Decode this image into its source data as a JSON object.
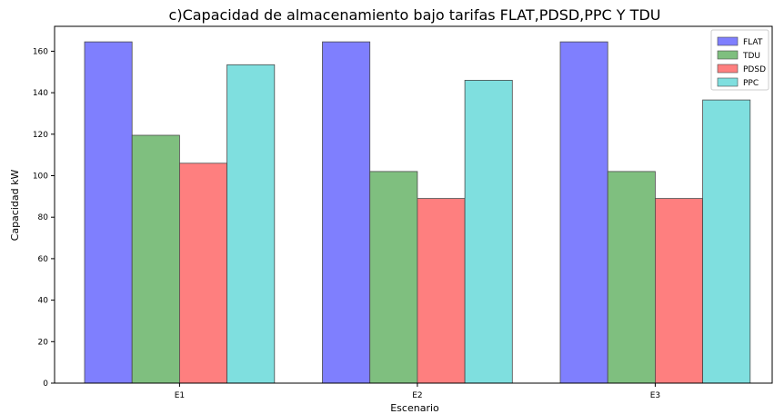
{
  "chart_data": {
    "type": "bar",
    "title": "c)Capacidad de almacenamiento bajo tarifas FLAT,PDSD,PPC Y TDU",
    "xlabel": "Escenario",
    "ylabel": "Capacidad kW",
    "categories": [
      "E1",
      "E2",
      "E3"
    ],
    "ylim": [
      0,
      172
    ],
    "yticks": [
      0,
      20,
      40,
      60,
      80,
      100,
      120,
      140,
      160
    ],
    "grid": false,
    "legend_position": "top-right",
    "series": [
      {
        "name": "FLAT",
        "color": "#7f7ffe",
        "values": [
          164.5,
          164.5,
          164.5
        ]
      },
      {
        "name": "TDU",
        "color": "#7fbf7f",
        "values": [
          119.5,
          102,
          102
        ]
      },
      {
        "name": "PDSD",
        "color": "#fe7f7f",
        "values": [
          106,
          89,
          89
        ]
      },
      {
        "name": "PPC",
        "color": "#7fdfdf",
        "values": [
          153.5,
          146,
          136.5
        ]
      }
    ]
  }
}
